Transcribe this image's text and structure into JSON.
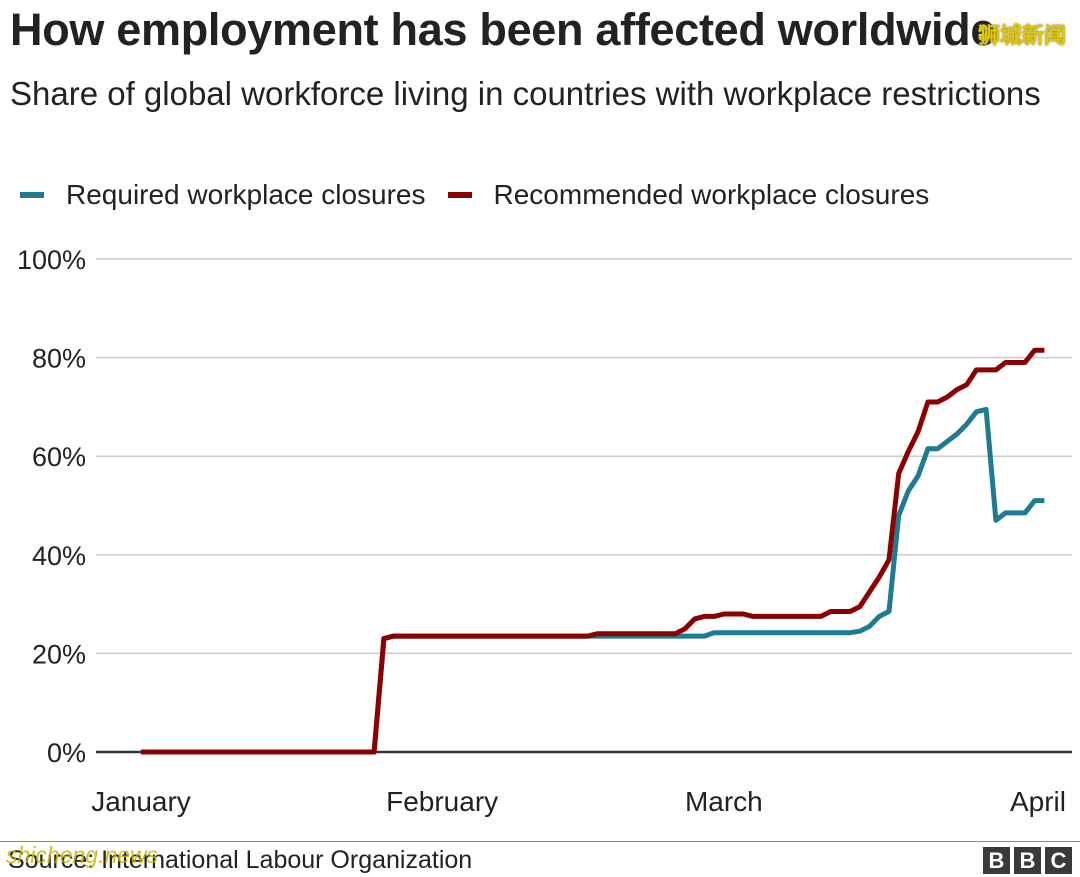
{
  "header": {
    "title": "How employment has been affected worldwide",
    "subtitle": "Share of global workforce living in countries with workplace restrictions"
  },
  "legend": [
    {
      "label": "Required workplace closures",
      "color": "#1f7a96"
    },
    {
      "label": "Recommended workplace closures",
      "color": "#8b0000"
    }
  ],
  "footer": {
    "source": "Source: International Labour Organization",
    "logo_letters": [
      "B",
      "B",
      "C"
    ]
  },
  "watermarks": {
    "top": "狮城新闻",
    "bottom": "shicheng.news"
  },
  "colors": {
    "required": "#1f7a96",
    "recommended": "#8b0000",
    "grid": "#cccccc",
    "baseline": "#333333",
    "text": "#222222"
  },
  "chart_data": {
    "type": "line",
    "title": "How employment has been affected worldwide",
    "subtitle": "Share of global workforce living in countries with workplace restrictions",
    "xlabel": "",
    "ylabel": "",
    "x_ticks": [
      {
        "label": "January",
        "day": 0
      },
      {
        "label": "February",
        "day": 31
      },
      {
        "label": "March",
        "day": 60
      },
      {
        "label": "April",
        "day": 91
      }
    ],
    "xlim": [
      0,
      91
    ],
    "y_ticks": [
      0,
      20,
      40,
      60,
      80,
      100
    ],
    "y_tick_suffix": "%",
    "ylim": [
      0,
      100
    ],
    "grid": true,
    "legend_position": "top-left",
    "series": [
      {
        "name": "Required workplace closures",
        "color": "#1f7a96",
        "points": [
          [
            0,
            0
          ],
          [
            24,
            0
          ],
          [
            25,
            23
          ],
          [
            26,
            23.5
          ],
          [
            30,
            23.5
          ],
          [
            40,
            23.5
          ],
          [
            47,
            23.5
          ],
          [
            48,
            23.5
          ],
          [
            55,
            23.5
          ],
          [
            58,
            23.5
          ],
          [
            59,
            24.2
          ],
          [
            65,
            24.2
          ],
          [
            70,
            24.2
          ],
          [
            73,
            24.2
          ],
          [
            74,
            24.5
          ],
          [
            75,
            25.5
          ],
          [
            76,
            27.5
          ],
          [
            77,
            28.5
          ],
          [
            78,
            48
          ],
          [
            79,
            53
          ],
          [
            80,
            56
          ],
          [
            81,
            61.5
          ],
          [
            82,
            61.5
          ],
          [
            83,
            63
          ],
          [
            84,
            64.5
          ],
          [
            85,
            66.5
          ],
          [
            86,
            69
          ],
          [
            87,
            69.5
          ],
          [
            88,
            47
          ],
          [
            89,
            48.5
          ],
          [
            90,
            48.5
          ],
          [
            91,
            48.5
          ],
          [
            92,
            51
          ],
          [
            93,
            51
          ]
        ]
      },
      {
        "name": "Recommended workplace closures",
        "color": "#8b0000",
        "points": [
          [
            0,
            0
          ],
          [
            24,
            0
          ],
          [
            25,
            23
          ],
          [
            26,
            23.5
          ],
          [
            30,
            23.5
          ],
          [
            40,
            23.5
          ],
          [
            46,
            23.5
          ],
          [
            47,
            24
          ],
          [
            55,
            24
          ],
          [
            56,
            25
          ],
          [
            57,
            27
          ],
          [
            58,
            27.5
          ],
          [
            59,
            27.5
          ],
          [
            60,
            28
          ],
          [
            62,
            28
          ],
          [
            63,
            27.5
          ],
          [
            70,
            27.5
          ],
          [
            71,
            28.5
          ],
          [
            73,
            28.5
          ],
          [
            74,
            29.5
          ],
          [
            75,
            32.5
          ],
          [
            76,
            35.5
          ],
          [
            77,
            39
          ],
          [
            78,
            56.5
          ],
          [
            79,
            61
          ],
          [
            80,
            65
          ],
          [
            81,
            71
          ],
          [
            82,
            71
          ],
          [
            83,
            72
          ],
          [
            84,
            73.5
          ],
          [
            85,
            74.5
          ],
          [
            86,
            77.5
          ],
          [
            87,
            77.5
          ],
          [
            88,
            77.5
          ],
          [
            89,
            79
          ],
          [
            90,
            79
          ],
          [
            91,
            79
          ],
          [
            92,
            81.5
          ],
          [
            93,
            81.5
          ]
        ]
      }
    ]
  }
}
